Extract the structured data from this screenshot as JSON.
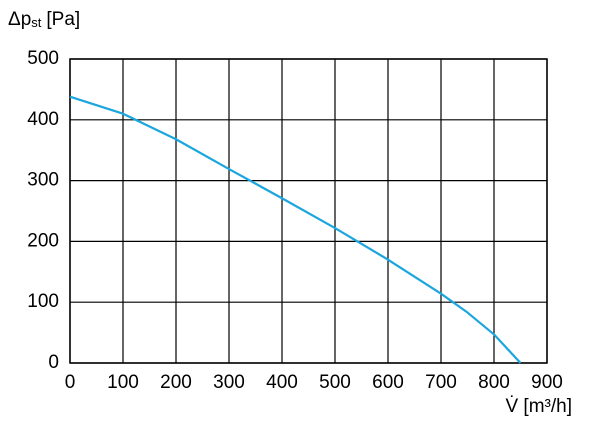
{
  "chart_data": {
    "type": "line",
    "ylabel": {
      "symbol": "Δp",
      "subscript": "st",
      "unit": "[Pa]"
    },
    "xlabel": "V̇ [m³/h]",
    "x": [
      0,
      100,
      200,
      300,
      400,
      500,
      600,
      700,
      750,
      800,
      850
    ],
    "series": [
      {
        "color": "#1ba6de",
        "values": [
          438,
          410,
          368,
          319,
          271,
          222,
          170,
          114,
          83,
          47,
          0
        ]
      }
    ],
    "xlim": [
      0,
      900
    ],
    "xticks": [
      0,
      100,
      200,
      300,
      400,
      500,
      600,
      700,
      800,
      900
    ],
    "ylim": [
      0,
      500
    ],
    "yticks": [
      0,
      100,
      200,
      300,
      400,
      500
    ],
    "grid": true
  }
}
